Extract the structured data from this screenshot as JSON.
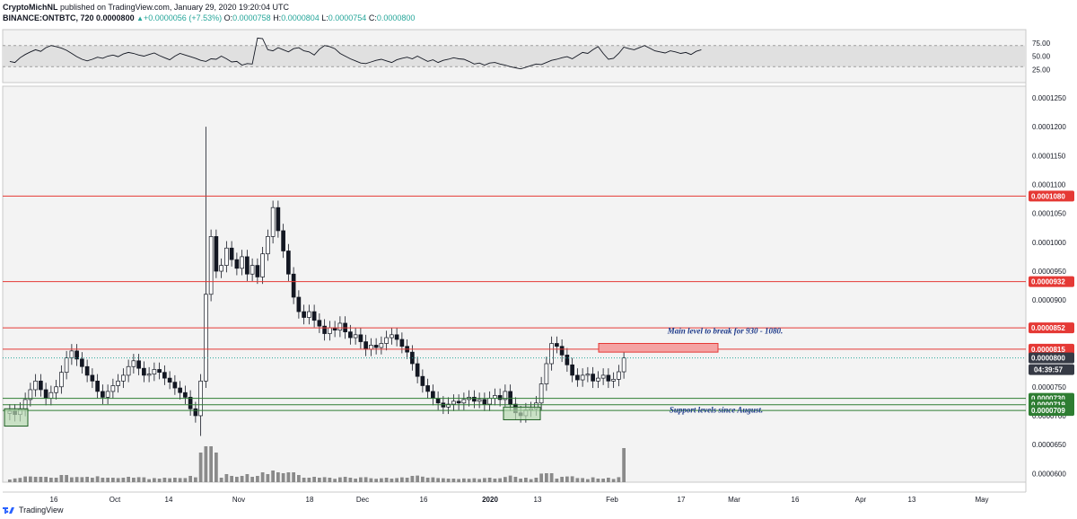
{
  "header": {
    "author": "CryptoMichNL",
    "published": "published on TradingView.com, January 29, 2020 19:20:04 UTC",
    "symbol": "BINANCE:ONTBTC, 720",
    "last": "0.0000800",
    "change": "+0.0000056 (+7.53%)",
    "open_label": "O:",
    "open": "0.0000758",
    "high_label": "H:",
    "high": "0.0000804",
    "low_label": "L:",
    "low": "0.0000754",
    "close_label": "C:",
    "close": "0.0000800"
  },
  "footer": {
    "brand": "TradingView"
  },
  "colors": {
    "resistance": "#e53935",
    "support": "#2e7d32",
    "candle": "#131722",
    "annotation": "#1e3a8a",
    "price_tag": "#363a45",
    "panel_bg": "#f3f3f3",
    "rsi_band": "#e0e0e0"
  },
  "chart_data": [
    {
      "type": "line",
      "name": "rsi",
      "ylim": [
        0,
        100
      ],
      "y_ticks": [
        "75.00",
        "50.00",
        "25.00"
      ],
      "band": [
        30,
        70
      ],
      "values": [
        40,
        38,
        47,
        53,
        58,
        62,
        59,
        66,
        70,
        68,
        65,
        61,
        55,
        49,
        44,
        41,
        44,
        48,
        46,
        50,
        52,
        49,
        54,
        57,
        55,
        52,
        50,
        53,
        56,
        51,
        47,
        43,
        50,
        55,
        52,
        49,
        46,
        42,
        40,
        45,
        44,
        50,
        45,
        39,
        40,
        33,
        36,
        35,
        84,
        83,
        62,
        60,
        66,
        62,
        58,
        64,
        66,
        60,
        58,
        52,
        63,
        70,
        68,
        64,
        55,
        50,
        45,
        41,
        37,
        36,
        39,
        42,
        44,
        41,
        38,
        43,
        46,
        48,
        45,
        50,
        45,
        40,
        43,
        38,
        42,
        44,
        47,
        45,
        44,
        40,
        35,
        37,
        33,
        37,
        38,
        35,
        33,
        30,
        28,
        26,
        29,
        32,
        35,
        34,
        38,
        42,
        44,
        47,
        49,
        45,
        51,
        57,
        55,
        62,
        68,
        55,
        44,
        46,
        55,
        67,
        64,
        62,
        66,
        70,
        65,
        60,
        58,
        56,
        60,
        58,
        55,
        57,
        53,
        59,
        62
      ]
    },
    {
      "type": "candlestick",
      "name": "ONTBTC",
      "x_ticks": [
        "16",
        "Oct",
        "14",
        "Nov",
        "18",
        "Dec",
        "16",
        "2020",
        "13",
        "Feb",
        "17",
        "Mar",
        "16",
        "Apr",
        "13",
        "May"
      ],
      "y_ticks": [
        "0.0001250",
        "0.0001200",
        "0.0001150",
        "0.0001100",
        "0.0001050",
        "0.0001000",
        "0.0000950",
        "0.0000900",
        "0.0000850",
        "0.0000800",
        "0.0000750",
        "0.0000700",
        "0.0000650",
        "0.0000600"
      ],
      "ylim": [
        5.85e-05,
        0.000127
      ],
      "closes": [
        7.08e-05,
        7.02e-05,
        7.11e-05,
        7.28e-05,
        7.45e-05,
        7.6e-05,
        7.45e-05,
        7.3e-05,
        7.4e-05,
        7.5e-05,
        7.75e-05,
        8e-05,
        8.12e-05,
        7.98e-05,
        7.85e-05,
        7.7e-05,
        7.6e-05,
        7.42e-05,
        7.32e-05,
        7.42e-05,
        7.52e-05,
        7.6e-05,
        7.7e-05,
        7.85e-05,
        7.95e-05,
        7.82e-05,
        7.7e-05,
        7.72e-05,
        7.8e-05,
        7.75e-05,
        7.65e-05,
        7.58e-05,
        7.48e-05,
        7.4e-05,
        7.32e-05,
        7.12e-05,
        7e-05,
        7.6e-05,
        9.1e-05,
        0.000101,
        9.5e-05,
        9.6e-05,
        9.9e-05,
        9.7e-05,
        9.55e-05,
        9.75e-05,
        9.45e-05,
        9.6e-05,
        9.4e-05,
        9.8e-05,
        0.000101,
        0.000106,
        0.000102,
        9.85e-05,
        9.45e-05,
        9.05e-05,
        8.8e-05,
        8.7e-05,
        8.8e-05,
        8.65e-05,
        8.55e-05,
        8.42e-05,
        8.52e-05,
        8.48e-05,
        8.6e-05,
        8.45e-05,
        8.35e-05,
        8.4e-05,
        8.28e-05,
        8.15e-05,
        8.22e-05,
        8.18e-05,
        8.25e-05,
        8.35e-05,
        8.4e-05,
        8.32e-05,
        8.2e-05,
        8.1e-05,
        7.9e-05,
        7.68e-05,
        7.52e-05,
        7.42e-05,
        7.3e-05,
        7.22e-05,
        7.15e-05,
        7.2e-05,
        7.25e-05,
        7.22e-05,
        7.28e-05,
        7.32e-05,
        7.25e-05,
        7.28e-05,
        7.2e-05,
        7.3e-05,
        7.35e-05,
        7.28e-05,
        7.42e-05,
        7.2e-05,
        7.05e-05,
        7e-05,
        7.1e-05,
        7.12e-05,
        7.22e-05,
        7.55e-05,
        7.9e-05,
        8.25e-05,
        8.2e-05,
        8.05e-05,
        7.88e-05,
        7.7e-05,
        7.62e-05,
        7.7e-05,
        7.72e-05,
        7.6e-05,
        7.65e-05,
        7.7e-05,
        7.6e-05,
        7.63e-05,
        7.76e-05,
        8e-05
      ]
    }
  ],
  "levels": [
    {
      "price": 0.000108,
      "label": "0.0001080",
      "kind": "resistance"
    },
    {
      "price": 9.32e-05,
      "label": "0.0000932",
      "kind": "resistance"
    },
    {
      "price": 8.52e-05,
      "label": "0.0000852",
      "kind": "resistance"
    },
    {
      "price": 8.15e-05,
      "label": "0.0000815",
      "kind": "resistance"
    },
    {
      "price": 7.3e-05,
      "label": "0.0000730",
      "kind": "support"
    },
    {
      "price": 7.19e-05,
      "label": "0.0000719",
      "kind": "support"
    },
    {
      "price": 7.09e-05,
      "label": "0.0000709",
      "kind": "support"
    }
  ],
  "current_price": {
    "price": 8e-05,
    "label": "0.0000800",
    "countdown": "04:39:57"
  },
  "annotations": {
    "resistance_note": "Main level to break for 930 - 1080.",
    "support_note": "Support levels since August."
  }
}
